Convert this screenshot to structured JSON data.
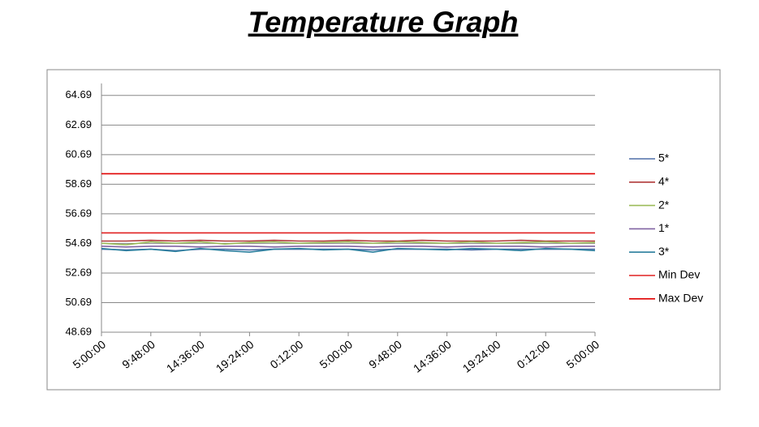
{
  "chart_data": {
    "type": "line",
    "title": "Temperature Graph",
    "categories": [
      "5:00:00",
      null,
      "9:48:00",
      null,
      "14:36:00",
      null,
      "19:24:00",
      null,
      "0:12:00",
      null,
      "5:00:00",
      null,
      "9:48:00",
      null,
      "14:36:00",
      null,
      "19:24:00",
      null,
      "0:12:00",
      null,
      "5:00:00"
    ],
    "series": [
      {
        "name": "5*",
        "color": "#4f6fa8",
        "values": [
          54.3,
          54.25,
          54.3,
          54.2,
          54.3,
          54.3,
          54.25,
          54.3,
          54.3,
          54.3,
          54.3,
          54.25,
          54.3,
          54.3,
          54.3,
          54.25,
          54.3,
          54.3,
          54.3,
          54.3,
          54.3
        ]
      },
      {
        "name": "4*",
        "color": "#b03a3a",
        "values": [
          54.85,
          54.85,
          54.9,
          54.85,
          54.9,
          54.85,
          54.85,
          54.9,
          54.85,
          54.85,
          54.9,
          54.85,
          54.85,
          54.9,
          54.85,
          54.85,
          54.85,
          54.9,
          54.85,
          54.85,
          54.85
        ]
      },
      {
        "name": "2*",
        "color": "#9bbb59",
        "values": [
          54.7,
          54.6,
          54.8,
          54.7,
          54.8,
          54.65,
          54.75,
          54.8,
          54.7,
          54.75,
          54.8,
          54.7,
          54.8,
          54.75,
          54.7,
          54.8,
          54.7,
          54.75,
          54.8,
          54.7,
          54.75
        ]
      },
      {
        "name": "1*",
        "color": "#8064a2",
        "values": [
          54.5,
          54.45,
          54.5,
          54.5,
          54.45,
          54.5,
          54.5,
          54.45,
          54.5,
          54.5,
          54.5,
          54.45,
          54.5,
          54.5,
          54.45,
          54.5,
          54.5,
          54.5,
          54.45,
          54.5,
          54.5
        ]
      },
      {
        "name": "3*",
        "color": "#2a7f9e",
        "values": [
          54.35,
          54.2,
          54.3,
          54.15,
          54.35,
          54.2,
          54.1,
          54.3,
          54.35,
          54.25,
          54.3,
          54.1,
          54.35,
          54.3,
          54.25,
          54.35,
          54.3,
          54.2,
          54.35,
          54.3,
          54.2
        ]
      },
      {
        "name": "Min Dev",
        "color": "#e02020",
        "values": [
          55.4,
          55.4,
          55.4,
          55.4,
          55.4,
          55.4,
          55.4,
          55.4,
          55.4,
          55.4,
          55.4,
          55.4,
          55.4,
          55.4,
          55.4,
          55.4,
          55.4,
          55.4,
          55.4,
          55.4,
          55.4
        ]
      },
      {
        "name": "Max Dev",
        "color": "#e00000",
        "values": [
          59.4,
          59.4,
          59.4,
          59.4,
          59.4,
          59.4,
          59.4,
          59.4,
          59.4,
          59.4,
          59.4,
          59.4,
          59.4,
          59.4,
          59.4,
          59.4,
          59.4,
          59.4,
          59.4,
          59.4,
          59.4
        ]
      }
    ],
    "ylim": [
      48.69,
      65.5
    ],
    "yticks": [
      48.69,
      50.69,
      52.69,
      54.69,
      56.69,
      58.69,
      60.69,
      62.69,
      64.69
    ],
    "grid": true,
    "legend": "right"
  }
}
